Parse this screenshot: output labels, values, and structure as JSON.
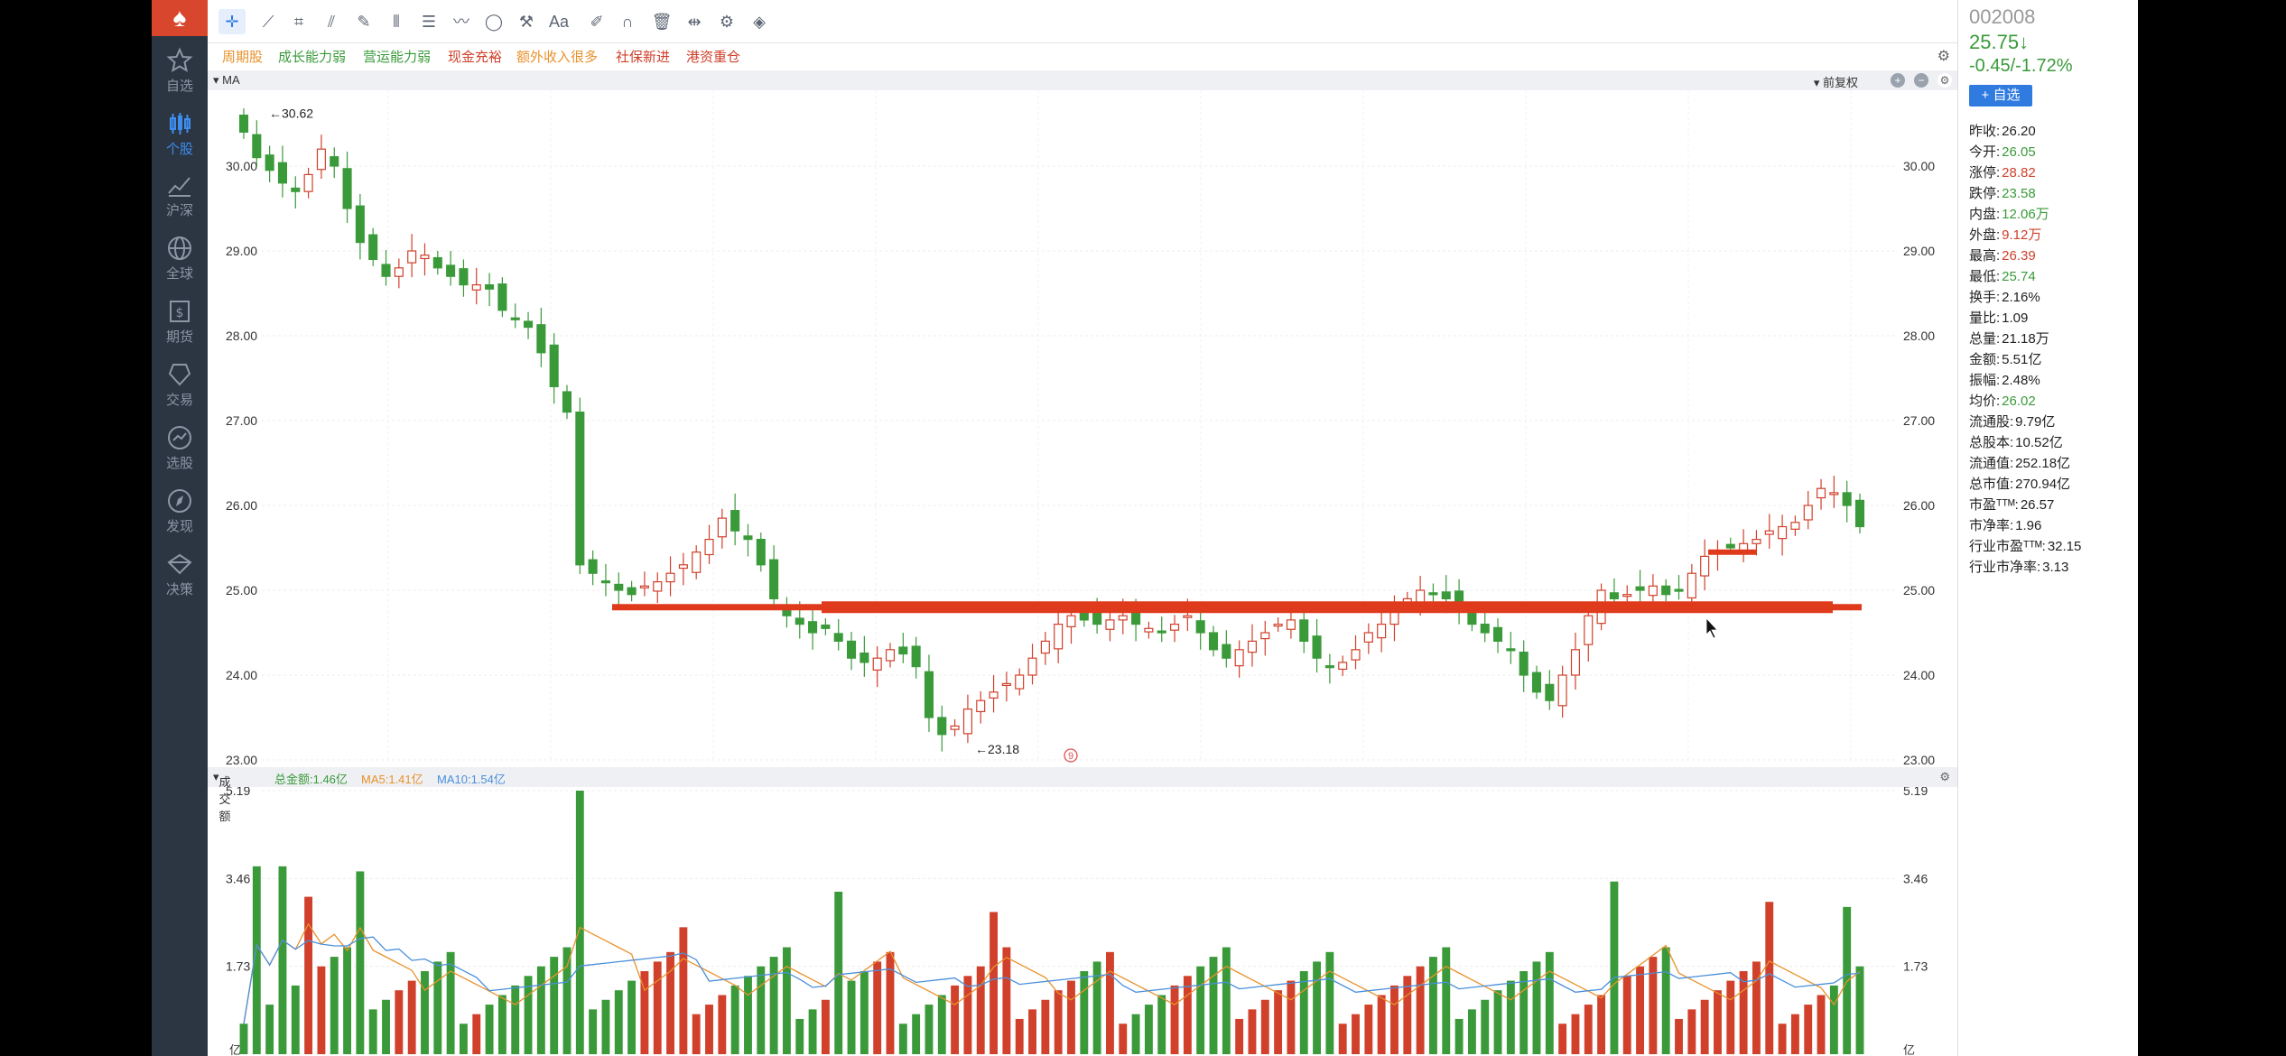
{
  "colors": {
    "up": "#d0402b",
    "down": "#3a9a3a",
    "accent": "#2f7be0",
    "support_line": "#e03a1c",
    "ma5": "#e8912c",
    "ma10": "#4a8fdc"
  },
  "nav": {
    "items": [
      {
        "label": "自选",
        "icon": "star-icon"
      },
      {
        "label": "个股",
        "icon": "candlestick-icon"
      },
      {
        "label": "沪深",
        "icon": "line-chart-icon"
      },
      {
        "label": "全球",
        "icon": "globe-icon"
      },
      {
        "label": "期货",
        "icon": "futures-icon"
      },
      {
        "label": "交易",
        "icon": "trade-icon"
      },
      {
        "label": "选股",
        "icon": "screener-icon"
      },
      {
        "label": "发现",
        "icon": "compass-icon"
      },
      {
        "label": "决策",
        "icon": "diamond-icon"
      }
    ]
  },
  "toolbar": {
    "tools": [
      "crosshair-icon",
      "line-icon",
      "crop-icon",
      "fan-icon",
      "pen-icon",
      "bars-icon",
      "text-box-icon",
      "wave-icon",
      "shape-icon",
      "tool-icon",
      "font-icon",
      "eraser-icon",
      "magnet-icon",
      "trash-icon",
      "split-icon",
      "settings-icon",
      "layers-icon"
    ],
    "font_label": "Aa"
  },
  "tags": [
    {
      "label": "周期股",
      "color": "#e8912c"
    },
    {
      "label": "成长能力弱",
      "color": "#3a9a3a"
    },
    {
      "label": "营运能力弱",
      "color": "#3a9a3a"
    },
    {
      "label": "现金充裕",
      "color": "#d0402b"
    },
    {
      "label": "额外收入很多",
      "color": "#e8912c"
    },
    {
      "label": "社保新进",
      "color": "#d0402b"
    },
    {
      "label": "港资重仓",
      "color": "#d0402b"
    }
  ],
  "price_panel": {
    "ma_label": "MA",
    "fuquan_label": "前复权",
    "y_ticks": [
      "30.00",
      "29.00",
      "28.00",
      "27.00",
      "26.00",
      "25.00",
      "24.00",
      "23.00"
    ],
    "high_label": "30.62",
    "low_label": "23.18",
    "marker": "9",
    "support_level": 24.8
  },
  "volume_panel": {
    "title": "成交额",
    "total_label": "总金额:1.46亿",
    "ma5_label": "MA5:1.41亿",
    "ma10_label": "MA10:1.54亿",
    "y_ticks": [
      "5.19",
      "3.46",
      "1.73"
    ],
    "unit": "亿"
  },
  "stock": {
    "code": "002008",
    "price": "25.75↓",
    "change": "-0.45/-1.72%",
    "add_label": "+ 自选",
    "stats": [
      {
        "k": "昨收:",
        "v": "26.20",
        "c": "dark"
      },
      {
        "k": "今开:",
        "v": "26.05",
        "c": "green"
      },
      {
        "k": "涨停:",
        "v": "28.82",
        "c": "red"
      },
      {
        "k": "跌停:",
        "v": "23.58",
        "c": "green"
      },
      {
        "k": "内盘:",
        "v": "12.06万",
        "c": "green"
      },
      {
        "k": "外盘:",
        "v": "9.12万",
        "c": "red"
      },
      {
        "k": "最高:",
        "v": "26.39",
        "c": "red"
      },
      {
        "k": "最低:",
        "v": "25.74",
        "c": "green"
      },
      {
        "k": "换手:",
        "v": "2.16%",
        "c": "dark"
      },
      {
        "k": "量比:",
        "v": "1.09",
        "c": "dark"
      },
      {
        "k": "总量:",
        "v": "21.18万",
        "c": "dark"
      },
      {
        "k": "金额:",
        "v": "5.51亿",
        "c": "dark"
      },
      {
        "k": "振幅:",
        "v": "2.48%",
        "c": "dark"
      },
      {
        "k": "均价:",
        "v": "26.02",
        "c": "green"
      },
      {
        "k": "流通股:",
        "v": "9.79亿",
        "c": "dark"
      },
      {
        "k": "总股本:",
        "v": "10.52亿",
        "c": "dark"
      },
      {
        "k": "流通值:",
        "v": "252.18亿",
        "c": "dark"
      },
      {
        "k": "总市值:",
        "v": "270.94亿",
        "c": "dark"
      },
      {
        "k": "市盈ᵀᵀᴹ:",
        "v": "26.57",
        "c": "dark"
      },
      {
        "k": "市净率:",
        "v": "1.96",
        "c": "dark"
      },
      {
        "k": "行业市盈ᵀᵀᴹ:",
        "v": "32.15",
        "c": "dark"
      },
      {
        "k": "行业市净率:",
        "v": "3.13",
        "c": "dark"
      }
    ]
  }
}
